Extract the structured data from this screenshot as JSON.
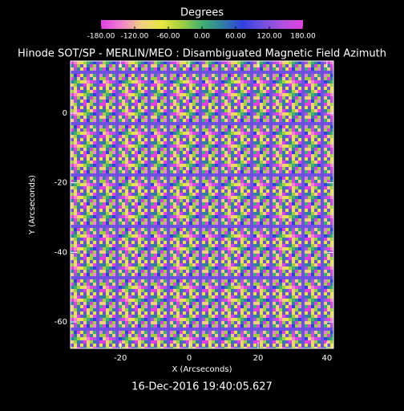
{
  "chart_data": {
    "type": "heatmap",
    "title": "Hinode SOT/SP - MERLIN/MEO : Disambiguated Magnetic Field Azimuth",
    "subtitle": "16-Dec-2016 19:40:05.627",
    "x_label": "X (Arcseconds)",
    "y_label": "Y (Arcseconds)",
    "xlim": [
      -34.5,
      41.9
    ],
    "ylim": [
      -67.6,
      15.0
    ],
    "xticks": [
      -20,
      0,
      20,
      40
    ],
    "yticks": [
      0,
      -20,
      -40,
      -60
    ],
    "colorbar": {
      "label": "Degrees",
      "lim": [
        -180,
        180
      ],
      "ticks": [
        {
          "value": -180,
          "label": "-180.00"
        },
        {
          "value": -120,
          "label": "-120.00"
        },
        {
          "value": -60,
          "label": "-60.00"
        },
        {
          "value": 0,
          "label": "0.00"
        },
        {
          "value": 60,
          "label": "60.00"
        },
        {
          "value": 120,
          "label": "120.00"
        },
        {
          "value": 180,
          "label": "180.00"
        }
      ],
      "colors": [
        "#e040e0",
        "#f080d0",
        "#f0d080",
        "#e8e840",
        "#a0d040",
        "#40b070",
        "#3080a0",
        "#3040e0",
        "#7050e0",
        "#b050e0",
        "#e040e0"
      ]
    }
  }
}
